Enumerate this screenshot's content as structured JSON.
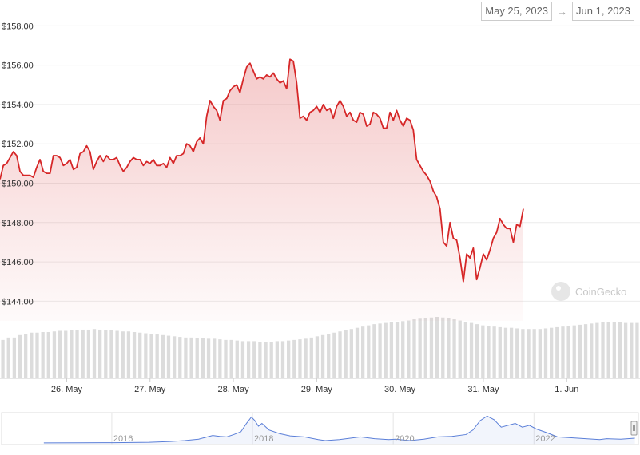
{
  "range_selector": {
    "from": "May 25, 2023",
    "arrow": "→",
    "to": "Jun 1, 2023"
  },
  "watermark": "CoinGecko",
  "colors": {
    "line": "#d62728",
    "volume": "#dcdcdc",
    "navigator": "#5b7fd8"
  },
  "chart_data": {
    "type": "line",
    "title": "",
    "ylim": [
      143,
      158.5
    ],
    "y_ticks": [
      "$144.00",
      "$146.00",
      "$148.00",
      "$150.00",
      "$152.00",
      "$154.00",
      "$156.00",
      "$158.00"
    ],
    "y_tick_values": [
      144,
      146,
      148,
      150,
      152,
      154,
      156,
      158
    ],
    "x_ticks": [
      "26. May",
      "27. May",
      "28. May",
      "29. May",
      "30. May",
      "31. May",
      "1. Jun"
    ],
    "x_tick_values": [
      1,
      2,
      3,
      4,
      5,
      6,
      7
    ],
    "x_range": [
      0.2,
      7.88
    ],
    "grid": true,
    "price": [
      [
        0.2,
        150.2
      ],
      [
        0.24,
        150.9
      ],
      [
        0.28,
        151.0
      ],
      [
        0.32,
        151.3
      ],
      [
        0.36,
        151.6
      ],
      [
        0.4,
        151.4
      ],
      [
        0.44,
        150.6
      ],
      [
        0.48,
        150.4
      ],
      [
        0.52,
        150.4
      ],
      [
        0.56,
        150.4
      ],
      [
        0.6,
        150.3
      ],
      [
        0.64,
        150.8
      ],
      [
        0.68,
        151.2
      ],
      [
        0.72,
        150.6
      ],
      [
        0.76,
        150.5
      ],
      [
        0.8,
        150.5
      ],
      [
        0.84,
        151.4
      ],
      [
        0.88,
        151.4
      ],
      [
        0.92,
        151.3
      ],
      [
        0.96,
        150.9
      ],
      [
        1.0,
        151.0
      ],
      [
        1.04,
        151.2
      ],
      [
        1.08,
        150.7
      ],
      [
        1.12,
        150.8
      ],
      [
        1.16,
        151.5
      ],
      [
        1.2,
        151.6
      ],
      [
        1.24,
        151.9
      ],
      [
        1.28,
        151.6
      ],
      [
        1.32,
        150.7
      ],
      [
        1.36,
        151.1
      ],
      [
        1.4,
        151.4
      ],
      [
        1.44,
        151.1
      ],
      [
        1.48,
        151.4
      ],
      [
        1.52,
        151.2
      ],
      [
        1.56,
        151.2
      ],
      [
        1.6,
        151.3
      ],
      [
        1.64,
        150.9
      ],
      [
        1.68,
        150.6
      ],
      [
        1.72,
        150.8
      ],
      [
        1.76,
        151.1
      ],
      [
        1.8,
        151.3
      ],
      [
        1.84,
        151.2
      ],
      [
        1.88,
        151.2
      ],
      [
        1.92,
        150.9
      ],
      [
        1.96,
        151.1
      ],
      [
        2.0,
        151.0
      ],
      [
        2.04,
        151.2
      ],
      [
        2.08,
        150.9
      ],
      [
        2.12,
        150.9
      ],
      [
        2.16,
        151.0
      ],
      [
        2.2,
        150.8
      ],
      [
        2.24,
        151.3
      ],
      [
        2.28,
        151.0
      ],
      [
        2.32,
        151.4
      ],
      [
        2.36,
        151.4
      ],
      [
        2.4,
        151.5
      ],
      [
        2.44,
        152.0
      ],
      [
        2.48,
        151.9
      ],
      [
        2.52,
        151.6
      ],
      [
        2.56,
        152.1
      ],
      [
        2.6,
        152.3
      ],
      [
        2.64,
        152.0
      ],
      [
        2.68,
        153.4
      ],
      [
        2.72,
        154.2
      ],
      [
        2.76,
        153.9
      ],
      [
        2.8,
        153.7
      ],
      [
        2.84,
        153.2
      ],
      [
        2.88,
        154.2
      ],
      [
        2.92,
        154.3
      ],
      [
        2.96,
        154.7
      ],
      [
        3.0,
        154.9
      ],
      [
        3.04,
        155.0
      ],
      [
        3.08,
        154.6
      ],
      [
        3.12,
        155.3
      ],
      [
        3.16,
        155.9
      ],
      [
        3.2,
        156.1
      ],
      [
        3.24,
        155.7
      ],
      [
        3.28,
        155.3
      ],
      [
        3.32,
        155.4
      ],
      [
        3.36,
        155.3
      ],
      [
        3.4,
        155.5
      ],
      [
        3.44,
        155.4
      ],
      [
        3.48,
        155.6
      ],
      [
        3.52,
        155.3
      ],
      [
        3.56,
        155.1
      ],
      [
        3.6,
        155.2
      ],
      [
        3.64,
        154.8
      ],
      [
        3.68,
        156.3
      ],
      [
        3.72,
        156.2
      ],
      [
        3.76,
        155.1
      ],
      [
        3.8,
        153.3
      ],
      [
        3.84,
        153.4
      ],
      [
        3.88,
        153.2
      ],
      [
        3.92,
        153.6
      ],
      [
        3.96,
        153.7
      ],
      [
        4.0,
        153.9
      ],
      [
        4.04,
        153.6
      ],
      [
        4.08,
        154.0
      ],
      [
        4.12,
        153.7
      ],
      [
        4.16,
        153.8
      ],
      [
        4.2,
        153.3
      ],
      [
        4.24,
        153.9
      ],
      [
        4.28,
        154.2
      ],
      [
        4.32,
        153.9
      ],
      [
        4.36,
        153.4
      ],
      [
        4.4,
        153.6
      ],
      [
        4.44,
        153.2
      ],
      [
        4.48,
        153.1
      ],
      [
        4.52,
        153.6
      ],
      [
        4.56,
        153.5
      ],
      [
        4.6,
        152.9
      ],
      [
        4.64,
        153.0
      ],
      [
        4.68,
        153.6
      ],
      [
        4.72,
        153.5
      ],
      [
        4.76,
        153.3
      ],
      [
        4.8,
        152.8
      ],
      [
        4.84,
        152.8
      ],
      [
        4.88,
        153.6
      ],
      [
        4.92,
        153.2
      ],
      [
        4.96,
        153.7
      ],
      [
        5.0,
        153.2
      ],
      [
        5.04,
        152.9
      ],
      [
        5.08,
        153.3
      ],
      [
        5.12,
        153.2
      ],
      [
        5.16,
        152.7
      ],
      [
        5.2,
        151.2
      ],
      [
        5.24,
        150.9
      ],
      [
        5.28,
        150.6
      ],
      [
        5.32,
        150.4
      ],
      [
        5.36,
        150.1
      ],
      [
        5.4,
        149.6
      ],
      [
        5.44,
        149.3
      ],
      [
        5.48,
        148.7
      ],
      [
        5.52,
        147.0
      ],
      [
        5.56,
        146.8
      ],
      [
        5.6,
        148.0
      ],
      [
        5.64,
        147.2
      ],
      [
        5.68,
        147.1
      ],
      [
        5.72,
        146.2
      ],
      [
        5.76,
        145.0
      ],
      [
        5.8,
        146.4
      ],
      [
        5.84,
        146.2
      ],
      [
        5.88,
        146.7
      ],
      [
        5.92,
        145.1
      ],
      [
        5.96,
        145.7
      ],
      [
        6.0,
        146.4
      ],
      [
        6.04,
        146.1
      ],
      [
        6.08,
        146.6
      ],
      [
        6.12,
        147.2
      ],
      [
        6.16,
        147.5
      ],
      [
        6.2,
        148.2
      ],
      [
        6.24,
        147.9
      ],
      [
        6.28,
        147.7
      ],
      [
        6.32,
        147.7
      ],
      [
        6.36,
        147.0
      ],
      [
        6.4,
        147.9
      ],
      [
        6.44,
        147.8
      ],
      [
        6.48,
        148.7
      ]
    ],
    "volume_relative": [
      0.62,
      0.66,
      0.66,
      0.7,
      0.72,
      0.74,
      0.74,
      0.75,
      0.75,
      0.76,
      0.77,
      0.77,
      0.78,
      0.78,
      0.79,
      0.79,
      0.8,
      0.79,
      0.78,
      0.78,
      0.77,
      0.76,
      0.76,
      0.75,
      0.74,
      0.73,
      0.72,
      0.71,
      0.7,
      0.69,
      0.68,
      0.67,
      0.66,
      0.66,
      0.65,
      0.65,
      0.64,
      0.64,
      0.63,
      0.62,
      0.62,
      0.61,
      0.6,
      0.6,
      0.6,
      0.59,
      0.59,
      0.59,
      0.6,
      0.6,
      0.61,
      0.62,
      0.63,
      0.64,
      0.66,
      0.68,
      0.7,
      0.72,
      0.74,
      0.76,
      0.78,
      0.8,
      0.82,
      0.84,
      0.86,
      0.88,
      0.89,
      0.9,
      0.91,
      0.92,
      0.93,
      0.94,
      0.96,
      0.97,
      0.98,
      0.99,
      1.0,
      0.99,
      0.98,
      0.96,
      0.94,
      0.92,
      0.9,
      0.88,
      0.86,
      0.85,
      0.84,
      0.83,
      0.82,
      0.82,
      0.81,
      0.8,
      0.8,
      0.8,
      0.8,
      0.81,
      0.82,
      0.83,
      0.84,
      0.85,
      0.86,
      0.87,
      0.88,
      0.89,
      0.9,
      0.91,
      0.92,
      0.92,
      0.91,
      0.9,
      0.9,
      0.9
    ],
    "navigator": {
      "x_ticks": [
        "2016",
        "2018",
        "2020",
        "2022"
      ],
      "x_tick_values": [
        2016,
        2018,
        2020,
        2022
      ],
      "x_range": [
        2014.4,
        2023.45
      ],
      "values": [
        [
          2015.0,
          1.0
        ],
        [
          2015.5,
          1.1
        ],
        [
          2016.0,
          1.2
        ],
        [
          2016.5,
          1.6
        ],
        [
          2016.8,
          2.5
        ],
        [
          2017.0,
          3.5
        ],
        [
          2017.2,
          5.0
        ],
        [
          2017.4,
          9.0
        ],
        [
          2017.5,
          8.0
        ],
        [
          2017.6,
          7.5
        ],
        [
          2017.7,
          10.0
        ],
        [
          2017.8,
          13.0
        ],
        [
          2017.88,
          22.0
        ],
        [
          2017.95,
          29.0
        ],
        [
          2018.0,
          25.0
        ],
        [
          2018.05,
          19.0
        ],
        [
          2018.1,
          22.0
        ],
        [
          2018.2,
          15.0
        ],
        [
          2018.35,
          11.0
        ],
        [
          2018.5,
          8.5
        ],
        [
          2018.7,
          7.5
        ],
        [
          2018.9,
          4.5
        ],
        [
          2019.0,
          3.5
        ],
        [
          2019.2,
          4.5
        ],
        [
          2019.4,
          6.5
        ],
        [
          2019.5,
          7.5
        ],
        [
          2019.7,
          5.5
        ],
        [
          2019.9,
          4.5
        ],
        [
          2020.0,
          5.0
        ],
        [
          2020.2,
          3.5
        ],
        [
          2020.4,
          5.0
        ],
        [
          2020.6,
          7.5
        ],
        [
          2020.8,
          8.0
        ],
        [
          2021.0,
          10.0
        ],
        [
          2021.1,
          15.0
        ],
        [
          2021.2,
          25.0
        ],
        [
          2021.3,
          30.0
        ],
        [
          2021.4,
          26.0
        ],
        [
          2021.5,
          18.0
        ],
        [
          2021.6,
          20.0
        ],
        [
          2021.7,
          22.0
        ],
        [
          2021.8,
          18.0
        ],
        [
          2021.9,
          20.0
        ],
        [
          2022.0,
          16.0
        ],
        [
          2022.15,
          12.0
        ],
        [
          2022.3,
          7.5
        ],
        [
          2022.5,
          6.5
        ],
        [
          2022.7,
          5.5
        ],
        [
          2022.9,
          4.5
        ],
        [
          2023.0,
          5.5
        ],
        [
          2023.2,
          5.0
        ],
        [
          2023.4,
          6.0
        ]
      ]
    }
  }
}
